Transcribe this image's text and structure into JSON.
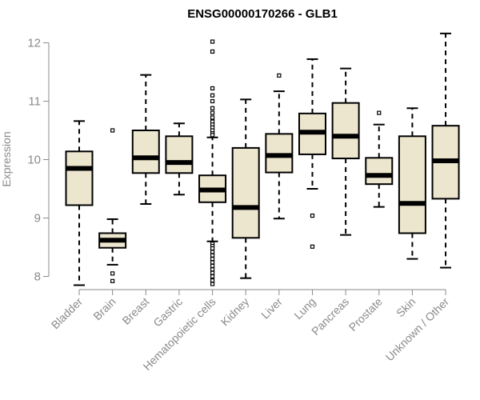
{
  "chart_data": {
    "type": "box",
    "title": "ENSG00000170266 - GLB1",
    "xlabel": "",
    "ylabel": "Expression",
    "ylim": [
      7.85,
      12.1
    ],
    "yticks": [
      8,
      9,
      10,
      11,
      12
    ],
    "box_fill": "#ede6cf",
    "outline": "#000000",
    "axis_color": "#8a8a8a",
    "categories": [
      "Bladder",
      "Brain",
      "Breast",
      "Gastric",
      "Hematopoietic cells",
      "Kidney",
      "Liver",
      "Lung",
      "Pancreas",
      "Prostate",
      "Skin",
      "Unknown / Other"
    ],
    "boxes": [
      {
        "name": "Bladder",
        "whisker_low": 7.85,
        "q1": 9.22,
        "median": 9.85,
        "q3": 10.14,
        "whisker_high": 10.66,
        "outliers": []
      },
      {
        "name": "Brain",
        "whisker_low": 8.2,
        "q1": 8.49,
        "median": 8.62,
        "q3": 8.74,
        "whisker_high": 8.98,
        "outliers": [
          10.5,
          8.05,
          7.92
        ]
      },
      {
        "name": "Breast",
        "whisker_low": 9.24,
        "q1": 9.77,
        "median": 10.03,
        "q3": 10.5,
        "whisker_high": 11.45,
        "outliers": []
      },
      {
        "name": "Gastric",
        "whisker_low": 9.4,
        "q1": 9.77,
        "median": 9.95,
        "q3": 10.4,
        "whisker_high": 10.62,
        "outliers": []
      },
      {
        "name": "Hematopoietic cells",
        "whisker_low": 8.6,
        "q1": 9.27,
        "median": 9.48,
        "q3": 9.73,
        "whisker_high": 10.38,
        "outliers": [
          12.02,
          11.85,
          11.22,
          11.1,
          11.0,
          10.88,
          10.8,
          10.72,
          10.65,
          10.6,
          10.55,
          10.5,
          10.45,
          10.42,
          8.56,
          8.52,
          8.48,
          8.42,
          8.36,
          8.3,
          8.24,
          8.18,
          8.12,
          8.06,
          8.0,
          7.93,
          7.87
        ]
      },
      {
        "name": "Kidney",
        "whisker_low": 7.97,
        "q1": 8.66,
        "median": 9.18,
        "q3": 10.2,
        "whisker_high": 11.03,
        "outliers": []
      },
      {
        "name": "Liver",
        "whisker_low": 8.99,
        "q1": 9.78,
        "median": 10.07,
        "q3": 10.44,
        "whisker_high": 11.17,
        "outliers": [
          11.44
        ]
      },
      {
        "name": "Lung",
        "whisker_low": 9.5,
        "q1": 10.09,
        "median": 10.47,
        "q3": 10.79,
        "whisker_high": 11.72,
        "outliers": [
          9.04,
          8.51
        ]
      },
      {
        "name": "Pancreas",
        "whisker_low": 8.71,
        "q1": 10.02,
        "median": 10.4,
        "q3": 10.97,
        "whisker_high": 11.56,
        "outliers": []
      },
      {
        "name": "Prostate",
        "whisker_low": 9.19,
        "q1": 9.58,
        "median": 9.73,
        "q3": 10.03,
        "whisker_high": 10.6,
        "outliers": [
          10.8
        ]
      },
      {
        "name": "Skin",
        "whisker_low": 8.3,
        "q1": 8.74,
        "median": 9.25,
        "q3": 10.4,
        "whisker_high": 10.88,
        "outliers": []
      },
      {
        "name": "Unknown / Other",
        "whisker_low": 8.15,
        "q1": 9.33,
        "median": 9.98,
        "q3": 10.58,
        "whisker_high": 12.16,
        "outliers": []
      }
    ]
  }
}
